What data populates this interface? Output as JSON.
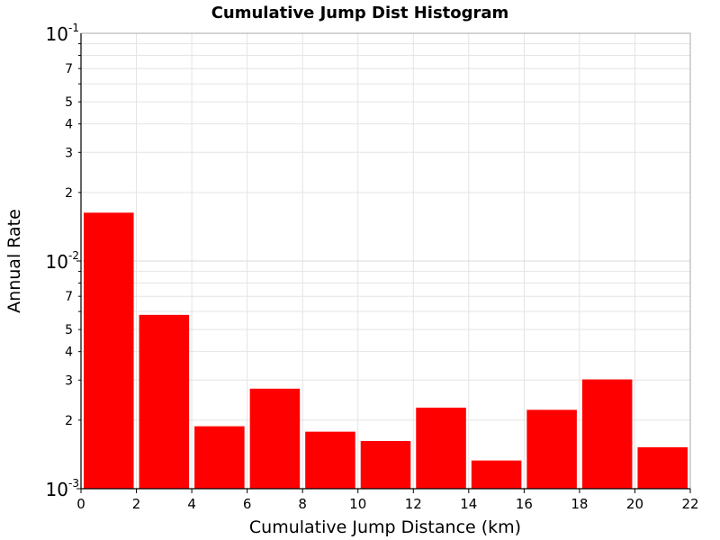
{
  "chart_data": {
    "type": "bar",
    "title": "Cumulative Jump Dist Histogram",
    "xlabel": "Cumulative Jump Distance (km)",
    "ylabel": "Annual Rate",
    "xlim": [
      0,
      22
    ],
    "ylim": [
      0.001,
      0.1
    ],
    "yscale": "log",
    "grid": true,
    "bar_color": "#ff0000",
    "x_ticks": [
      0,
      2,
      4,
      6,
      8,
      10,
      12,
      14,
      16,
      18,
      20,
      22
    ],
    "y_major_ticks": [
      {
        "value": 0.1,
        "base": "10",
        "exp": "-1"
      },
      {
        "value": 0.01,
        "base": "10",
        "exp": "-2"
      },
      {
        "value": 0.001,
        "base": "10",
        "exp": "-3"
      }
    ],
    "y_minor_labels": [
      2,
      3,
      4,
      5,
      7
    ],
    "bins": [
      {
        "x0": 0,
        "x1": 2,
        "value": 0.0163
      },
      {
        "x0": 2,
        "x1": 4,
        "value": 0.0058
      },
      {
        "x0": 4,
        "x1": 6,
        "value": 0.00188
      },
      {
        "x0": 6,
        "x1": 8,
        "value": 0.00275
      },
      {
        "x0": 8,
        "x1": 10,
        "value": 0.00178
      },
      {
        "x0": 10,
        "x1": 12,
        "value": 0.00162
      },
      {
        "x0": 12,
        "x1": 14,
        "value": 0.00227
      },
      {
        "x0": 14,
        "x1": 16,
        "value": 0.00133
      },
      {
        "x0": 16,
        "x1": 18,
        "value": 0.00222
      },
      {
        "x0": 18,
        "x1": 20,
        "value": 0.00302
      },
      {
        "x0": 20,
        "x1": 22,
        "value": 0.00152
      }
    ]
  }
}
